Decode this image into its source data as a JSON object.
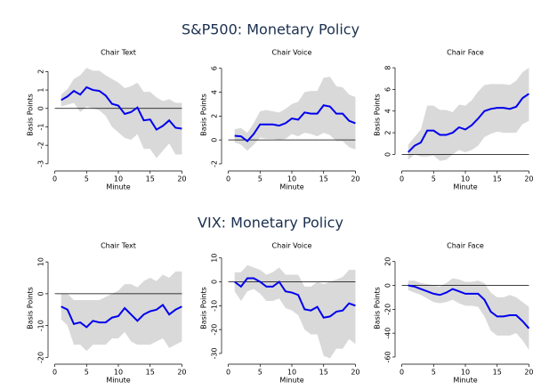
{
  "section_titles": [
    "S&P500: Monetary Policy",
    "VIX: Monetary Policy"
  ],
  "chart_data": [
    {
      "type": "line",
      "title": "Chair Text",
      "xlabel": "Minute",
      "ylabel": "Basis Points",
      "x": [
        1,
        2,
        3,
        4,
        5,
        6,
        7,
        8,
        9,
        10,
        11,
        12,
        13,
        14,
        15,
        16,
        17,
        18,
        19,
        20
      ],
      "series": [
        {
          "color": "#0000ee",
          "values": [
            0.45,
            0.65,
            0.95,
            0.75,
            1.15,
            1.0,
            0.95,
            0.7,
            0.25,
            0.15,
            -0.3,
            -0.2,
            0.05,
            -0.65,
            -0.6,
            -1.15,
            -0.95,
            -0.65,
            -1.05,
            -1.1
          ]
        }
      ],
      "band": {
        "color": "#d9d9d9",
        "upper": [
          0.75,
          1.05,
          1.6,
          1.8,
          2.2,
          2.05,
          2.05,
          1.8,
          1.6,
          1.4,
          1.1,
          1.2,
          1.4,
          0.9,
          0.9,
          0.6,
          0.4,
          0.5,
          0.3,
          0.3
        ],
        "lower": [
          0.1,
          0.2,
          0.3,
          -0.2,
          0.1,
          0,
          -0.1,
          -0.4,
          -1,
          -1.3,
          -1.6,
          -1.7,
          -1.4,
          -2.2,
          -2.2,
          -2.7,
          -2.3,
          -1.9,
          -2.5,
          -2.5
        ]
      },
      "hline": 0,
      "xlim": [
        -0.5,
        20.5
      ],
      "xticks": [
        0,
        5,
        10,
        15,
        20
      ],
      "ylim": [
        -3.2,
        2.5
      ],
      "yticks": [
        -3,
        -2,
        -1,
        0,
        1,
        2
      ]
    },
    {
      "type": "line",
      "title": "Chair Voice",
      "xlabel": "Minute",
      "ylabel": "Basis Points",
      "x": [
        1,
        2,
        3,
        4,
        5,
        6,
        7,
        8,
        9,
        10,
        11,
        12,
        13,
        14,
        15,
        16,
        17,
        18,
        19,
        20
      ],
      "series": [
        {
          "color": "#0000ee",
          "values": [
            0.35,
            0.3,
            -0.1,
            0.5,
            1.3,
            1.3,
            1.3,
            1.2,
            1.4,
            1.8,
            1.7,
            2.3,
            2.2,
            2.2,
            2.9,
            2.8,
            2.2,
            2.2,
            1.6,
            1.4
          ]
        }
      ],
      "band": {
        "color": "#d9d9d9",
        "upper": [
          0.9,
          1.0,
          0.6,
          1.4,
          2.4,
          2.5,
          2.4,
          2.3,
          2.6,
          3.0,
          3.2,
          4.0,
          4.1,
          4.1,
          5.2,
          5.3,
          4.5,
          4.4,
          3.8,
          3.6
        ],
        "lower": [
          -0.2,
          -0.4,
          -0.9,
          -0.4,
          0.2,
          0.1,
          0.1,
          0.0,
          0.1,
          0.5,
          0.3,
          0.6,
          0.5,
          0.3,
          0.6,
          0.4,
          -0.1,
          -0.1,
          -0.6,
          -0.8
        ]
      },
      "hline": 0,
      "xlim": [
        -0.5,
        20.5
      ],
      "xticks": [
        0,
        5,
        10,
        15,
        20
      ],
      "ylim": [
        -2.3,
        6.5
      ],
      "yticks": [
        -2,
        0,
        2,
        4,
        6
      ]
    },
    {
      "type": "line",
      "title": "Chair Face",
      "xlabel": "Minute",
      "ylabel": "Basis Points",
      "x": [
        1,
        2,
        3,
        4,
        5,
        6,
        7,
        8,
        9,
        10,
        11,
        12,
        13,
        14,
        15,
        16,
        17,
        18,
        19,
        20
      ],
      "series": [
        {
          "color": "#0000ee",
          "values": [
            0.2,
            0.8,
            1.1,
            2.2,
            2.2,
            1.8,
            1.8,
            2.0,
            2.5,
            2.3,
            2.7,
            3.3,
            4.0,
            4.2,
            4.3,
            4.3,
            4.2,
            4.4,
            5.2,
            5.6
          ]
        }
      ],
      "band": {
        "color": "#d9d9d9",
        "upper": [
          0.9,
          1.6,
          2.3,
          4.5,
          4.5,
          4.1,
          4.1,
          3.9,
          4.6,
          4.5,
          5.0,
          5.8,
          6.4,
          6.5,
          6.5,
          6.5,
          6.4,
          6.8,
          7.6,
          8.0
        ],
        "lower": [
          -0.5,
          0.0,
          -0.2,
          -0.2,
          -0.1,
          -0.6,
          -0.5,
          0.0,
          0.4,
          0.2,
          0.4,
          0.8,
          1.6,
          1.9,
          2.1,
          2.0,
          2.0,
          2.0,
          2.8,
          3.1
        ]
      },
      "hline": 0,
      "xlim": [
        -0.5,
        20.5
      ],
      "xticks": [
        0,
        5,
        10,
        15,
        20
      ],
      "ylim": [
        -1.2,
        8.5
      ],
      "yticks": [
        0,
        2,
        4,
        6,
        8
      ]
    },
    {
      "type": "line",
      "title": "Chair Text",
      "xlabel": "Minute",
      "ylabel": "Basis Points",
      "x": [
        1,
        2,
        3,
        4,
        5,
        6,
        7,
        8,
        9,
        10,
        11,
        12,
        13,
        14,
        15,
        16,
        17,
        18,
        19,
        20
      ],
      "series": [
        {
          "color": "#0000ee",
          "values": [
            -4,
            -5,
            -9.5,
            -9,
            -10.5,
            -8.5,
            -9,
            -9,
            -7.5,
            -7,
            -4.5,
            -6.5,
            -8.5,
            -6.5,
            -5.5,
            -5,
            -3.5,
            -6.5,
            -5,
            -4
          ]
        }
      ],
      "band": {
        "color": "#d9d9d9",
        "upper": [
          0,
          0,
          -2,
          -2,
          -2,
          -2,
          -2,
          -1,
          0,
          1,
          3,
          3,
          2,
          4,
          5,
          4,
          6,
          5,
          7,
          7
        ],
        "lower": [
          -8,
          -10,
          -16,
          -16,
          -18,
          -16,
          -16,
          -16,
          -14,
          -14,
          -12,
          -15,
          -16,
          -16,
          -16,
          -15,
          -14,
          -17,
          -16,
          -15
        ]
      },
      "hline": 0,
      "xlim": [
        -0.5,
        20.5
      ],
      "xticks": [
        0,
        5,
        10,
        15,
        20
      ],
      "ylim": [
        -21,
        12
      ],
      "yticks": [
        -20,
        -10,
        0,
        10
      ]
    },
    {
      "type": "line",
      "title": "Chair Voice",
      "xlabel": "Minute",
      "ylabel": "Basis Points",
      "x": [
        1,
        2,
        3,
        4,
        5,
        6,
        7,
        8,
        9,
        10,
        11,
        12,
        13,
        14,
        15,
        16,
        17,
        18,
        19,
        20
      ],
      "series": [
        {
          "color": "#0000ee",
          "values": [
            0,
            -2,
            1.5,
            1.5,
            0,
            -2,
            -2,
            0,
            -4,
            -4.5,
            -5.5,
            -11.5,
            -12,
            -10.5,
            -15,
            -14.5,
            -12.5,
            -12,
            -9,
            -10
          ]
        }
      ],
      "band": {
        "color": "#d9d9d9",
        "upper": [
          4,
          4,
          7,
          6,
          5,
          3,
          4,
          6,
          3,
          3,
          3,
          -2,
          -2,
          0,
          -1,
          0,
          1,
          2,
          5,
          5
        ],
        "lower": [
          -4,
          -8,
          -4,
          -3,
          -5,
          -8,
          -8,
          -7,
          -11,
          -12,
          -14,
          -20,
          -22,
          -22,
          -31,
          -32,
          -28,
          -28,
          -24,
          -26
        ]
      },
      "hline": 0,
      "xlim": [
        -0.5,
        20.5
      ],
      "xticks": [
        0,
        5,
        10,
        15,
        20
      ],
      "ylim": [
        -33,
        11
      ],
      "yticks": [
        -30,
        -20,
        -10,
        0,
        10
      ]
    },
    {
      "type": "line",
      "title": "Chair Face",
      "xlabel": "Minute",
      "ylabel": "Basis Points",
      "x": [
        1,
        2,
        3,
        4,
        5,
        6,
        7,
        8,
        9,
        10,
        11,
        12,
        13,
        14,
        15,
        16,
        17,
        18,
        19,
        20
      ],
      "series": [
        {
          "color": "#0000ee",
          "values": [
            0,
            -1,
            -3,
            -5,
            -7,
            -8,
            -6,
            -3,
            -5,
            -7,
            -7,
            -7,
            -12,
            -22,
            -26,
            -26,
            -25,
            -25,
            -30,
            -36
          ]
        }
      ],
      "band": {
        "color": "#d9d9d9",
        "upper": [
          4,
          4,
          2,
          1,
          0,
          -1,
          2,
          6,
          5,
          3,
          3,
          4,
          2,
          -6,
          -10,
          -10,
          -8,
          -10,
          -14,
          -18
        ],
        "lower": [
          -4,
          -6,
          -8,
          -11,
          -14,
          -15,
          -14,
          -12,
          -15,
          -17,
          -17,
          -18,
          -26,
          -38,
          -42,
          -42,
          -42,
          -40,
          -46,
          -54
        ]
      },
      "hline": 0,
      "xlim": [
        -0.5,
        20.5
      ],
      "xticks": [
        0,
        5,
        10,
        15,
        20
      ],
      "ylim": [
        -63,
        25
      ],
      "yticks": [
        -60,
        -40,
        -20,
        0,
        20
      ]
    }
  ]
}
